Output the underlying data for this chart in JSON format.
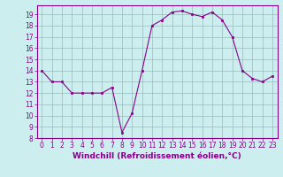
{
  "x": [
    0,
    1,
    2,
    3,
    4,
    5,
    6,
    7,
    8,
    9,
    10,
    11,
    12,
    13,
    14,
    15,
    16,
    17,
    18,
    19,
    20,
    21,
    22,
    23
  ],
  "y": [
    14,
    13,
    13,
    12,
    12,
    12,
    12,
    12.5,
    8.5,
    10.2,
    14,
    18,
    18.5,
    19.2,
    19.3,
    19.0,
    18.8,
    19.2,
    18.5,
    17,
    14,
    13.3,
    13,
    13.5
  ],
  "xlabel": "Windchill (Refroidissement éolien,°C)",
  "xlim": [
    -0.5,
    23.5
  ],
  "ylim": [
    8,
    19.8
  ],
  "yticks": [
    8,
    9,
    10,
    11,
    12,
    13,
    14,
    15,
    16,
    17,
    18,
    19
  ],
  "xticks": [
    0,
    1,
    2,
    3,
    4,
    5,
    6,
    7,
    8,
    9,
    10,
    11,
    12,
    13,
    14,
    15,
    16,
    17,
    18,
    19,
    20,
    21,
    22,
    23
  ],
  "line_color": "#880088",
  "marker": "s",
  "marker_size": 2,
  "bg_color": "#cceeee",
  "grid_color": "#99bbbb",
  "tick_label_fontsize": 5.5,
  "xlabel_fontsize": 6.5
}
